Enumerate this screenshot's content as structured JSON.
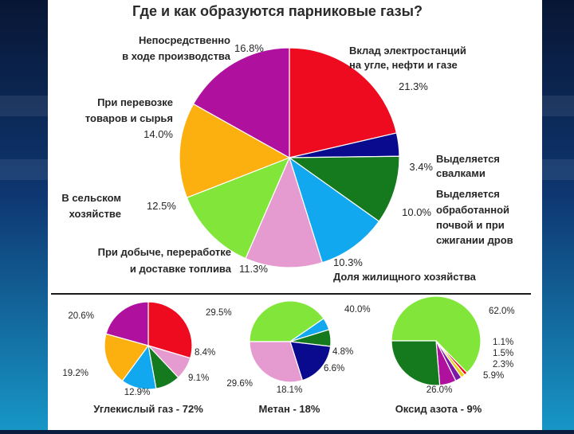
{
  "title": "Где и как образуются парниковые газы?",
  "colors": {
    "purple": "#b0109e",
    "red": "#ee0a1f",
    "navy": "#0a0a8e",
    "darkgreen": "#157a1e",
    "cyan": "#12a8f0",
    "pink": "#e59ad0",
    "lightgreen": "#82e63a",
    "orange": "#fbb010",
    "violet": "#7a1aa6",
    "yellow": "#e6d21a"
  },
  "chart_data": [
    {
      "type": "pie",
      "title": "Где и как образуются парниковые газы?",
      "slices": [
        {
          "label": "Вклад электростанций на угле, нефти и газе",
          "label_lines": [
            "Вклад электростанций",
            "на угле, нефти и газе"
          ],
          "value": 21.3,
          "value_label": "21.3%",
          "color": "#ee0a1f"
        },
        {
          "label": "Выделяется свалками",
          "label_lines": [
            "Выделяется",
            "свалками"
          ],
          "value": 3.4,
          "value_label": "3.4%",
          "color": "#0a0a8e"
        },
        {
          "label": "Выделяется обработанной почвой и при сжигании дров",
          "label_lines": [
            "Выделяется",
            "обработанной",
            "почвой и при",
            "сжигании дров"
          ],
          "value": 10.0,
          "value_label": "10.0%",
          "color": "#157a1e"
        },
        {
          "label": "Доля жилищного хозяйства",
          "label_lines": [
            "Доля жилищного хозяйства"
          ],
          "value": 10.3,
          "value_label": "10.3%",
          "color": "#12a8f0"
        },
        {
          "label": "При добыче, переработке и доставке топлива",
          "label_lines": [
            "При добыче, переработке",
            "и доставке топлива"
          ],
          "value": 11.3,
          "value_label": "11.3%",
          "color": "#e59ad0"
        },
        {
          "label": "В сельском хозяйстве",
          "label_lines": [
            "В сельском",
            "хозяйстве"
          ],
          "value": 12.5,
          "value_label": "12.5%",
          "color": "#82e63a"
        },
        {
          "label": "При перевозке товаров и сырья",
          "label_lines": [
            "При перевозке",
            "товаров и сырья"
          ],
          "value": 14.0,
          "value_label": "14.0%",
          "color": "#fbb010"
        },
        {
          "label": "Непосредственно в ходе производства",
          "label_lines": [
            "Непосредственно",
            "в ходе производства"
          ],
          "value": 16.8,
          "value_label": "16.8%",
          "color": "#b0109e"
        }
      ]
    },
    {
      "type": "pie",
      "title": "Углекислый газ - 72%",
      "slices": [
        {
          "value": 29.5,
          "value_label": "29.5%",
          "color": "#ee0a1f"
        },
        {
          "value": 8.4,
          "value_label": "8.4%",
          "color": "#e59ad0"
        },
        {
          "value": 9.1,
          "value_label": "9.1%",
          "color": "#157a1e"
        },
        {
          "value": 12.9,
          "value_label": "12.9%",
          "color": "#12a8f0"
        },
        {
          "value": 19.2,
          "value_label": "19.2%",
          "color": "#fbb010"
        },
        {
          "value": 20.6,
          "value_label": "20.6%",
          "color": "#b0109e"
        }
      ]
    },
    {
      "type": "pie",
      "title": "Метан - 18%",
      "slices": [
        {
          "value": 40.0,
          "value_label": "40.0%",
          "color": "#82e63a"
        },
        {
          "value": 4.8,
          "value_label": "4.8%",
          "color": "#12a8f0"
        },
        {
          "value": 6.6,
          "value_label": "6.6%",
          "color": "#157a1e"
        },
        {
          "value": 18.1,
          "value_label": "18.1%",
          "color": "#0a0a8e"
        },
        {
          "value": 29.6,
          "value_label": "29.6%",
          "color": "#e59ad0"
        }
      ]
    },
    {
      "type": "pie",
      "title": "Оксид азота - 9%",
      "slices": [
        {
          "value": 62.0,
          "value_label": "62.0%",
          "color": "#82e63a"
        },
        {
          "value": 1.1,
          "value_label": "1.1%",
          "color": "#ee0a1f"
        },
        {
          "value": 1.5,
          "value_label": "1.5%",
          "color": "#e6d21a"
        },
        {
          "value": 2.3,
          "value_label": "2.3%",
          "color": "#7a1aa6"
        },
        {
          "value": 5.9,
          "value_label": "5.9%",
          "color": "#b0109e"
        },
        {
          "value": 26.0,
          "value_label": "26.0%",
          "color": "#157a1e"
        }
      ]
    }
  ]
}
